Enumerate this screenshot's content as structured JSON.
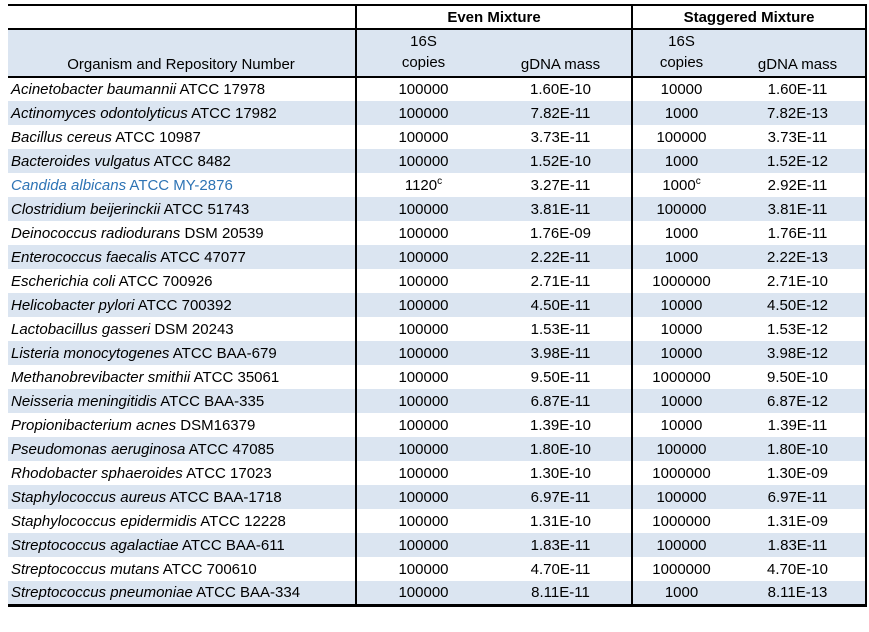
{
  "table": {
    "group_headers": [
      "Even Mixture",
      "Staggered Mixture"
    ],
    "organism_header": "Organism and Repository Number",
    "sub_16s_label": "16S",
    "copies_label": "copies",
    "gdna_label": "gDNA mass",
    "colors": {
      "shaded_row": "#DBE5F1",
      "highlight_text": "#2E74B5",
      "border": "#000000"
    },
    "rows": [
      {
        "organism": "Acinetobacter baumannii",
        "strain": "ATCC 17978",
        "even_copies": "100000",
        "even_sup": "",
        "even_mass": "1.60E-10",
        "stag_copies": "10000",
        "stag_sup": "",
        "stag_mass": "1.60E-11",
        "highlight": false
      },
      {
        "organism": "Actinomyces odontolyticus",
        "strain": "ATCC 17982",
        "even_copies": "100000",
        "even_sup": "",
        "even_mass": "7.82E-11",
        "stag_copies": "1000",
        "stag_sup": "",
        "stag_mass": "7.82E-13",
        "highlight": false
      },
      {
        "organism": "Bacillus cereus",
        "strain": "ATCC 10987",
        "even_copies": "100000",
        "even_sup": "",
        "even_mass": "3.73E-11",
        "stag_copies": "100000",
        "stag_sup": "",
        "stag_mass": "3.73E-11",
        "highlight": false
      },
      {
        "organism": "Bacteroides vulgatus",
        "strain": "ATCC 8482",
        "even_copies": "100000",
        "even_sup": "",
        "even_mass": "1.52E-10",
        "stag_copies": "1000",
        "stag_sup": "",
        "stag_mass": "1.52E-12",
        "highlight": false
      },
      {
        "organism": "Candida albicans",
        "strain": "ATCC MY-2876",
        "even_copies": "1120",
        "even_sup": "c",
        "even_mass": "3.27E-11",
        "stag_copies": "1000",
        "stag_sup": "c",
        "stag_mass": "2.92E-11",
        "highlight": true
      },
      {
        "organism": "Clostridium beijerinckii",
        "strain": "ATCC 51743",
        "even_copies": "100000",
        "even_sup": "",
        "even_mass": "3.81E-11",
        "stag_copies": "100000",
        "stag_sup": "",
        "stag_mass": "3.81E-11",
        "highlight": false
      },
      {
        "organism": "Deinococcus radiodurans",
        "strain": "DSM 20539",
        "even_copies": "100000",
        "even_sup": "",
        "even_mass": "1.76E-09",
        "stag_copies": "1000",
        "stag_sup": "",
        "stag_mass": "1.76E-11",
        "highlight": false
      },
      {
        "organism": "Enterococcus faecalis",
        "strain": "ATCC 47077",
        "even_copies": "100000",
        "even_sup": "",
        "even_mass": "2.22E-11",
        "stag_copies": "1000",
        "stag_sup": "",
        "stag_mass": "2.22E-13",
        "highlight": false
      },
      {
        "organism": "Escherichia coli",
        "strain": "ATCC 700926",
        "even_copies": "100000",
        "even_sup": "",
        "even_mass": "2.71E-11",
        "stag_copies": "1000000",
        "stag_sup": "",
        "stag_mass": "2.71E-10",
        "highlight": false
      },
      {
        "organism": "Helicobacter pylori",
        "strain": "ATCC 700392",
        "even_copies": "100000",
        "even_sup": "",
        "even_mass": "4.50E-11",
        "stag_copies": "10000",
        "stag_sup": "",
        "stag_mass": "4.50E-12",
        "highlight": false
      },
      {
        "organism": "Lactobacillus gasseri",
        "strain": "DSM 20243",
        "even_copies": "100000",
        "even_sup": "",
        "even_mass": "1.53E-11",
        "stag_copies": "10000",
        "stag_sup": "",
        "stag_mass": "1.53E-12",
        "highlight": false
      },
      {
        "organism": "Listeria monocytogenes",
        "strain": "ATCC BAA-679",
        "even_copies": "100000",
        "even_sup": "",
        "even_mass": "3.98E-11",
        "stag_copies": "10000",
        "stag_sup": "",
        "stag_mass": "3.98E-12",
        "highlight": false
      },
      {
        "organism": "Methanobrevibacter smithii",
        "strain": "ATCC 35061",
        "even_copies": "100000",
        "even_sup": "",
        "even_mass": "9.50E-11",
        "stag_copies": "1000000",
        "stag_sup": "",
        "stag_mass": "9.50E-10",
        "highlight": false
      },
      {
        "organism": "Neisseria meningitidis",
        "strain": "ATCC BAA-335",
        "even_copies": "100000",
        "even_sup": "",
        "even_mass": "6.87E-11",
        "stag_copies": "10000",
        "stag_sup": "",
        "stag_mass": "6.87E-12",
        "highlight": false
      },
      {
        "organism": "Propionibacterium acnes",
        "strain": "DSM16379",
        "even_copies": "100000",
        "even_sup": "",
        "even_mass": "1.39E-10",
        "stag_copies": "10000",
        "stag_sup": "",
        "stag_mass": "1.39E-11",
        "highlight": false
      },
      {
        "organism": "Pseudomonas aeruginosa",
        "strain": "ATCC 47085",
        "even_copies": "100000",
        "even_sup": "",
        "even_mass": "1.80E-10",
        "stag_copies": "100000",
        "stag_sup": "",
        "stag_mass": "1.80E-10",
        "highlight": false
      },
      {
        "organism": "Rhodobacter sphaeroides",
        "strain": "ATCC 17023",
        "even_copies": "100000",
        "even_sup": "",
        "even_mass": "1.30E-10",
        "stag_copies": "1000000",
        "stag_sup": "",
        "stag_mass": "1.30E-09",
        "highlight": false
      },
      {
        "organism": "Staphylococcus aureus",
        "strain": "ATCC BAA-1718",
        "even_copies": "100000",
        "even_sup": "",
        "even_mass": "6.97E-11",
        "stag_copies": "100000",
        "stag_sup": "",
        "stag_mass": "6.97E-11",
        "highlight": false
      },
      {
        "organism": "Staphylococcus epidermidis",
        "strain": "ATCC 12228",
        "even_copies": "100000",
        "even_sup": "",
        "even_mass": "1.31E-10",
        "stag_copies": "1000000",
        "stag_sup": "",
        "stag_mass": "1.31E-09",
        "highlight": false
      },
      {
        "organism": "Streptococcus agalactiae",
        "strain": "ATCC BAA-611",
        "even_copies": "100000",
        "even_sup": "",
        "even_mass": "1.83E-11",
        "stag_copies": "100000",
        "stag_sup": "",
        "stag_mass": "1.83E-11",
        "highlight": false
      },
      {
        "organism": "Streptococcus mutans",
        "strain": "ATCC 700610",
        "even_copies": "100000",
        "even_sup": "",
        "even_mass": "4.70E-11",
        "stag_copies": "1000000",
        "stag_sup": "",
        "stag_mass": "4.70E-10",
        "highlight": false
      },
      {
        "organism": "Streptococcus pneumoniae",
        "strain": "ATCC BAA-334",
        "even_copies": "100000",
        "even_sup": "",
        "even_mass": "8.11E-11",
        "stag_copies": "1000",
        "stag_sup": "",
        "stag_mass": "8.11E-13",
        "highlight": false
      }
    ]
  }
}
